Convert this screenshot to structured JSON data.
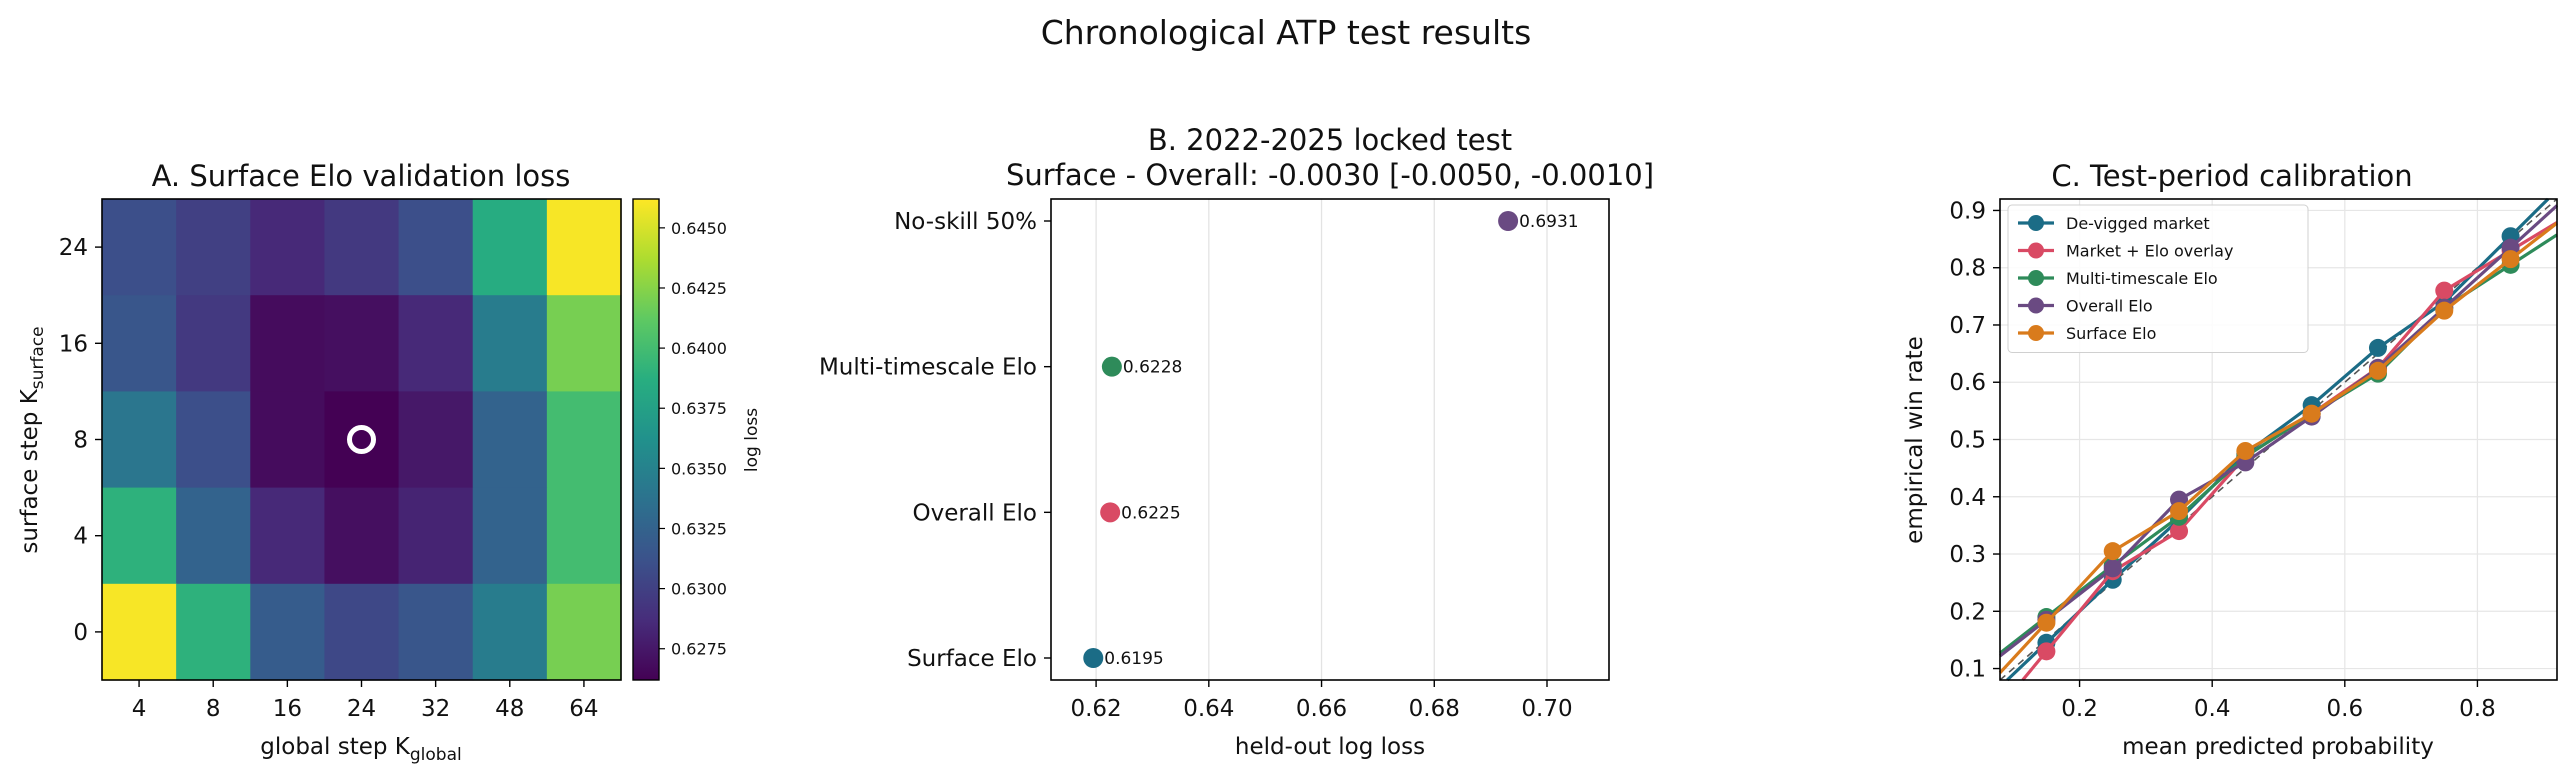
{
  "suptitle": "Chronological ATP test results",
  "colors": {
    "teal": "#1b6c86",
    "red": "#d94a64",
    "green": "#2e8b5a",
    "purple": "#6a4a82",
    "orange": "#d97b1c",
    "ref_line": "#555555"
  },
  "chart_data": [
    {
      "type": "heatmap",
      "title": "A. Surface Elo validation loss",
      "xlabel": "global step K",
      "xlabel_sub": "global",
      "ylabel": "surface step K",
      "ylabel_sub": "surface",
      "x_categories": [
        "4",
        "8",
        "16",
        "24",
        "32",
        "48",
        "64"
      ],
      "y_categories": [
        "24",
        "16",
        "8",
        "4",
        "0"
      ],
      "values": [
        [
          0.631,
          0.63,
          0.6285,
          0.6295,
          0.631,
          0.6385,
          0.646
        ],
        [
          0.6315,
          0.6295,
          0.6268,
          0.627,
          0.6285,
          0.6345,
          0.642
        ],
        [
          0.634,
          0.631,
          0.6268,
          0.6262,
          0.6275,
          0.6325,
          0.64
        ],
        [
          0.639,
          0.6325,
          0.6285,
          0.627,
          0.6282,
          0.6325,
          0.64
        ],
        [
          0.646,
          0.639,
          0.632,
          0.6305,
          0.6315,
          0.6345,
          0.642
        ]
      ],
      "selected": {
        "x": "24",
        "y": "8"
      },
      "colorbar": {
        "label": "log loss",
        "min": 0.6262,
        "max": 0.6462,
        "ticks": [
          "0.6275",
          "0.6300",
          "0.6325",
          "0.6350",
          "0.6375",
          "0.6400",
          "0.6425",
          "0.6450"
        ]
      }
    },
    {
      "type": "scatter",
      "title": "B. 2022-2025 locked test",
      "subtitle": "Surface - Overall: -0.0030 [-0.0050, -0.0010]",
      "xlabel": "held-out log loss",
      "xlim": [
        0.612,
        0.711
      ],
      "x_ticks": [
        "0.62",
        "0.64",
        "0.66",
        "0.68",
        "0.70"
      ],
      "categories": [
        "No-skill 50%",
        "Multi-timescale Elo",
        "Overall Elo",
        "Surface Elo"
      ],
      "values": [
        0.6931,
        0.6228,
        0.6225,
        0.6195
      ],
      "labels": [
        "0.6931",
        "0.6228",
        "0.6225",
        "0.6195"
      ],
      "point_colors": [
        "#6a4a82",
        "#2e8b5a",
        "#d94a64",
        "#1b6c86"
      ]
    },
    {
      "type": "line",
      "title": "C. Test-period calibration",
      "xlabel": "mean predicted probability",
      "ylabel": "empirical win rate",
      "xlim": [
        0.08,
        0.92
      ],
      "ylim": [
        0.08,
        0.92
      ],
      "x_ticks": [
        "0.2",
        "0.4",
        "0.6",
        "0.8"
      ],
      "y_ticks": [
        "0.1",
        "0.2",
        "0.3",
        "0.4",
        "0.5",
        "0.6",
        "0.7",
        "0.8",
        "0.9"
      ],
      "grid": true,
      "legend_position": "top-left",
      "x": [
        0.15,
        0.25,
        0.35,
        0.45,
        0.55,
        0.65,
        0.75,
        0.85
      ],
      "series": [
        {
          "name": "De-vigged market",
          "color": "#1b6c86",
          "values": [
            0.145,
            0.255,
            0.36,
            0.475,
            0.56,
            0.66,
            0.74,
            0.855
          ]
        },
        {
          "name": "Market + Elo overlay",
          "color": "#d94a64",
          "values": [
            0.13,
            0.27,
            0.34,
            0.47,
            0.545,
            0.625,
            0.76,
            0.83
          ]
        },
        {
          "name": "Multi-timescale Elo",
          "color": "#2e8b5a",
          "values": [
            0.19,
            0.28,
            0.365,
            0.47,
            0.545,
            0.615,
            0.73,
            0.805
          ]
        },
        {
          "name": "Overall Elo",
          "color": "#6a4a82",
          "values": [
            0.185,
            0.275,
            0.395,
            0.46,
            0.54,
            0.625,
            0.73,
            0.835
          ]
        },
        {
          "name": "Surface Elo",
          "color": "#d97b1c",
          "values": [
            0.18,
            0.305,
            0.375,
            0.48,
            0.545,
            0.62,
            0.725,
            0.815
          ]
        }
      ]
    }
  ]
}
